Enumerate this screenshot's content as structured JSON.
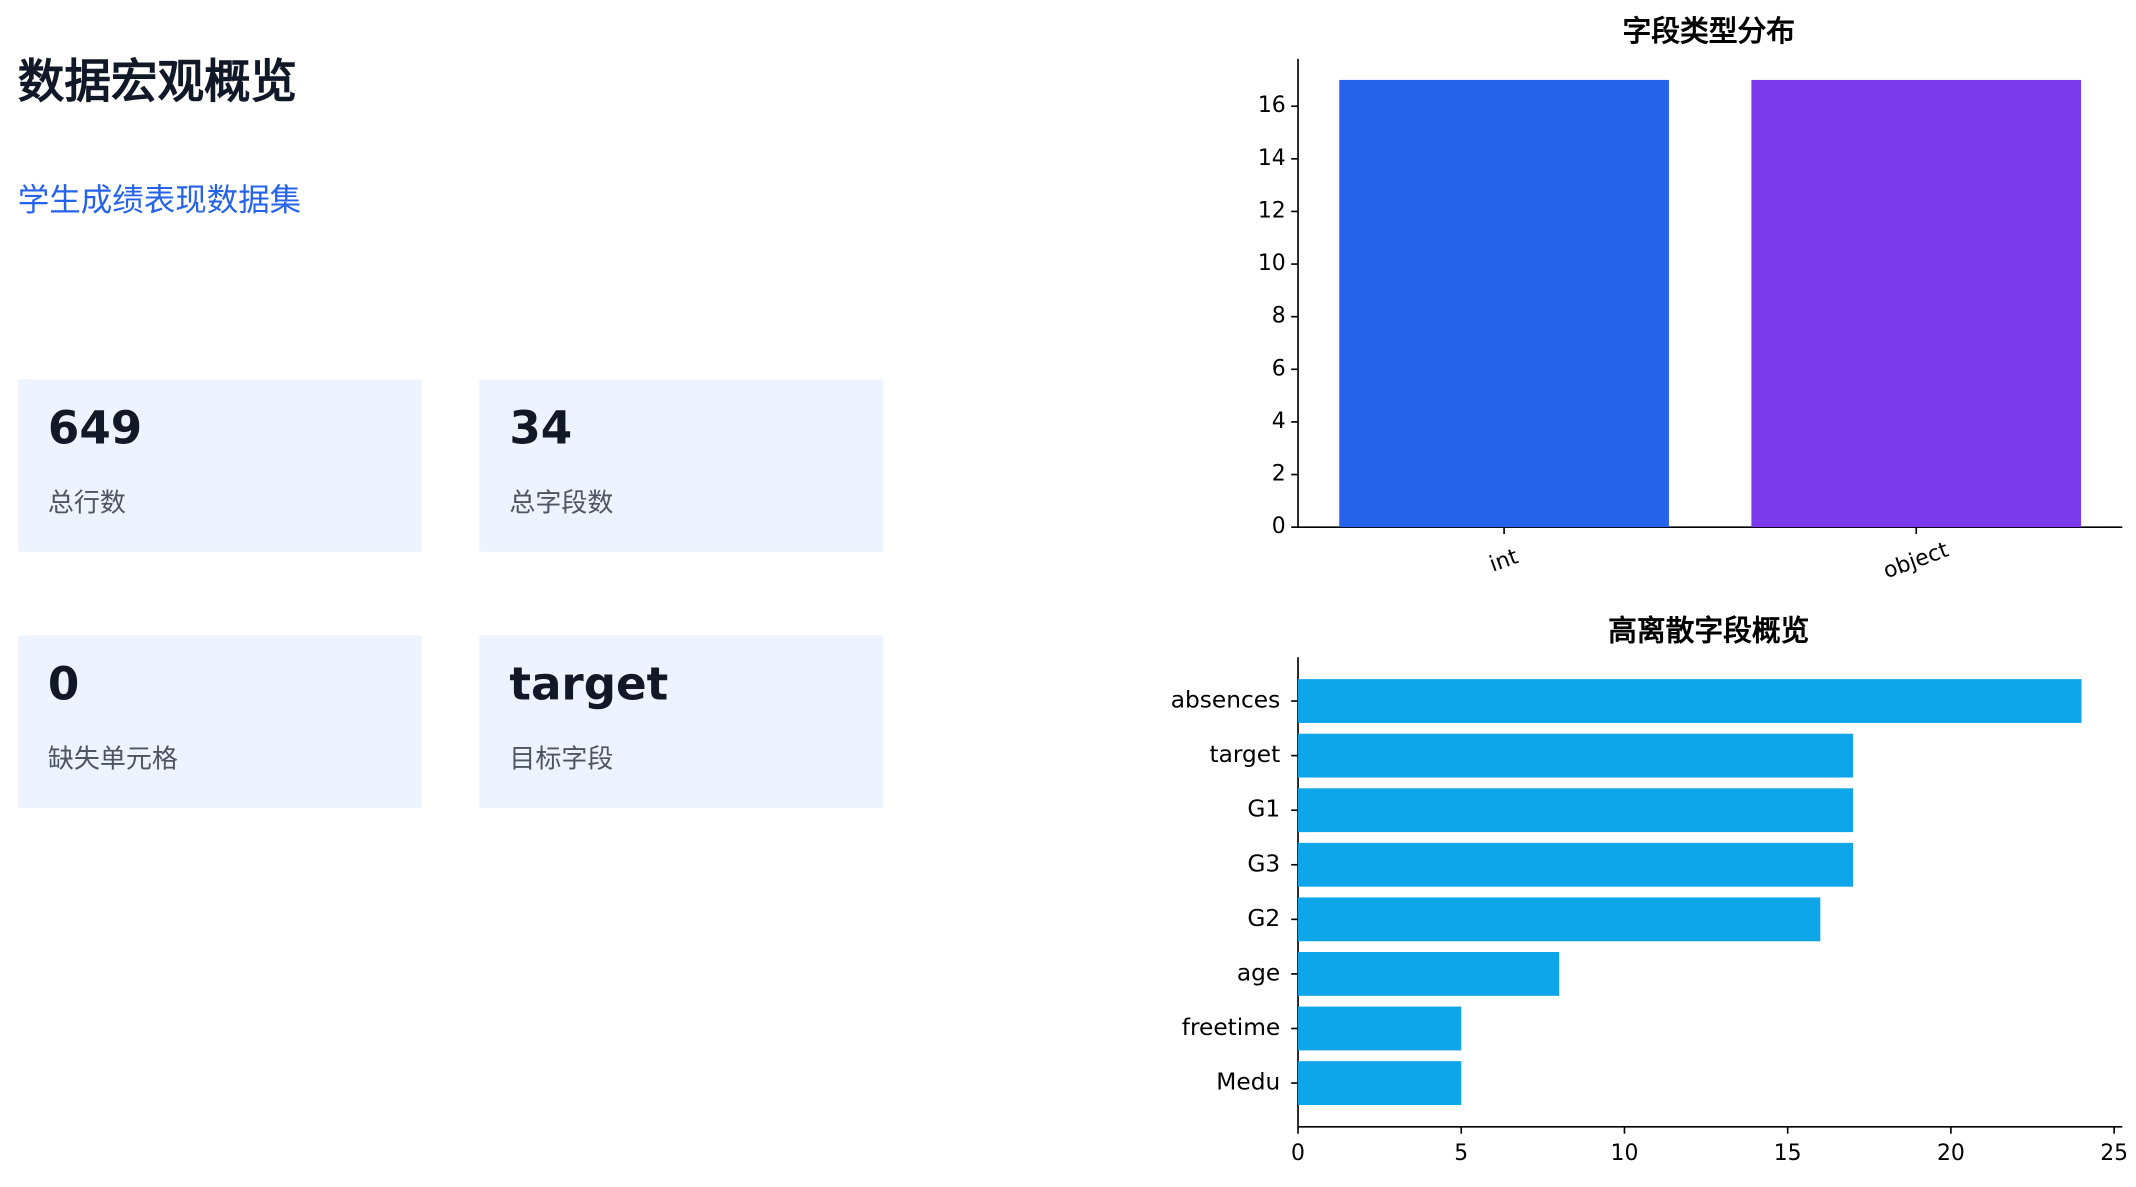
{
  "header": {
    "title": "数据宏观概览",
    "subtitle": "学生成绩表现数据集"
  },
  "cards": [
    {
      "value": "649",
      "label": "总行数"
    },
    {
      "value": "34",
      "label": "总字段数"
    },
    {
      "value": "0",
      "label": "缺失单元格"
    },
    {
      "value": "target",
      "label": "目标字段"
    }
  ],
  "chart_data": [
    {
      "type": "bar",
      "title": "字段类型分布",
      "categories": [
        "int",
        "object"
      ],
      "values": [
        17,
        17
      ],
      "colors": [
        "#2563eb",
        "#7c3aed"
      ],
      "ylim": [
        0,
        17.8
      ],
      "yticks": [
        0,
        2,
        4,
        6,
        8,
        10,
        12,
        14,
        16
      ]
    },
    {
      "type": "barh",
      "title": "高离散字段概览",
      "categories": [
        "absences",
        "target",
        "G1",
        "G3",
        "G2",
        "age",
        "freetime",
        "Medu"
      ],
      "values": [
        24,
        17,
        17,
        17,
        16,
        8,
        5,
        5
      ],
      "color": "#0ea5e9",
      "xlim": [
        0,
        25.25
      ],
      "xticks": [
        0,
        5,
        10,
        15,
        20,
        25
      ]
    }
  ]
}
